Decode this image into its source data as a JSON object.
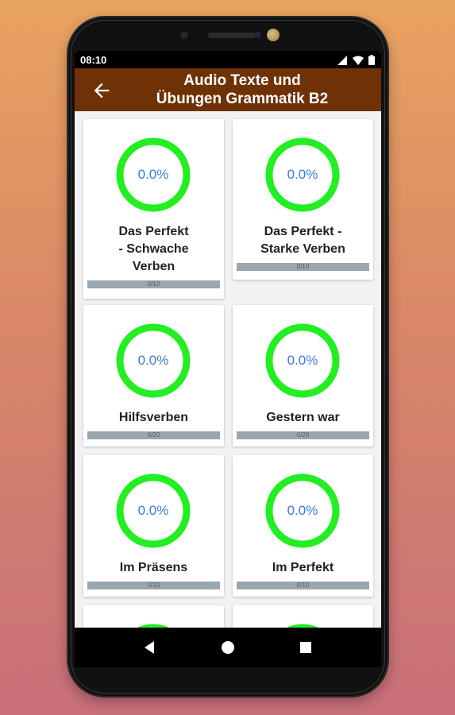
{
  "status_bar": {
    "time": "08:10"
  },
  "app_bar": {
    "title_line1": "Audio Texte und",
    "title_line2": "Übungen Grammatik B2"
  },
  "colors": {
    "app_bar": "#6e3206",
    "ring": "#22ee22",
    "percent_text": "#3c7bdc",
    "progress_track": "#9aa6ae"
  },
  "cards": [
    {
      "percent": "0.0%",
      "title_lines": [
        "Das Perfekt",
        "- Schwache",
        "Verben"
      ],
      "progress_label": "0/10",
      "progress_value": 0
    },
    {
      "percent": "0.0%",
      "title_lines": [
        "Das Perfekt -",
        "Starke Verben"
      ],
      "progress_label": "0/10",
      "progress_value": 0
    },
    {
      "percent": "0.0%",
      "title_lines": [
        "Hilfsverben"
      ],
      "progress_label": "0/20",
      "progress_value": 0
    },
    {
      "percent": "0.0%",
      "title_lines": [
        "Gestern war"
      ],
      "progress_label": "0/20",
      "progress_value": 0
    },
    {
      "percent": "0.0%",
      "title_lines": [
        "Im Präsens"
      ],
      "progress_label": "0/10",
      "progress_value": 0
    },
    {
      "percent": "0.0%",
      "title_lines": [
        "Im Perfekt"
      ],
      "progress_label": "0/10",
      "progress_value": 0
    }
  ],
  "icons": {
    "back": "arrow-back-icon",
    "nav_back": "triangle-back-icon",
    "nav_home": "circle-home-icon",
    "nav_recents": "square-recents-icon"
  }
}
